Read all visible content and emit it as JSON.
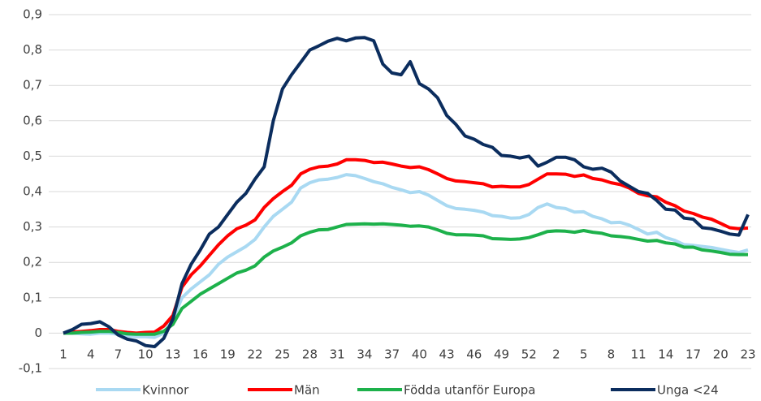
{
  "chart_data": {
    "type": "line",
    "categories": [
      "1",
      null,
      null,
      "4",
      null,
      null,
      "7",
      null,
      null,
      "10",
      null,
      null,
      "13",
      null,
      null,
      "16",
      null,
      null,
      "19",
      null,
      null,
      "22",
      null,
      null,
      "25",
      null,
      null,
      "28",
      null,
      null,
      "31",
      null,
      null,
      "34",
      null,
      null,
      "37",
      null,
      null,
      "40",
      null,
      null,
      "43",
      null,
      null,
      "46",
      null,
      null,
      "49",
      null,
      null,
      "52",
      null,
      null,
      "2",
      null,
      null,
      "5",
      null,
      null,
      "8",
      null,
      null,
      "11",
      null,
      null,
      "14",
      null,
      null,
      "17",
      null,
      null,
      "20",
      null,
      null,
      "23"
    ],
    "ylim": [
      -0.1,
      0.9
    ],
    "yticks": [
      {
        "value": -0.1,
        "label": "-0,1"
      },
      0,
      {
        "value": 0.1,
        "label": "0,1"
      },
      {
        "value": 0.2,
        "label": "0,2"
      },
      {
        "value": 0.3,
        "label": "0,3"
      },
      {
        "value": 0.4,
        "label": "0,4"
      },
      {
        "value": 0.5,
        "label": "0,5"
      },
      {
        "value": 0.6,
        "label": "0,6"
      },
      {
        "value": 0.7,
        "label": "0,7"
      },
      {
        "value": 0.8,
        "label": "0,8"
      },
      {
        "value": 0.9,
        "label": "0,9"
      }
    ],
    "grid": true,
    "legend": "bottom",
    "series": [
      {
        "name": "Kvinnor",
        "color": "#a9d9f2",
        "values": [
          0,
          0,
          -0.002,
          -0.003,
          0,
          0,
          -0.003,
          -0.007,
          -0.01,
          -0.01,
          -0.012,
          0,
          0.04,
          0.1,
          0.125,
          0.145,
          0.165,
          0.195,
          0.215,
          0.23,
          0.245,
          0.265,
          0.3,
          0.33,
          0.35,
          0.37,
          0.41,
          0.425,
          0.433,
          0.435,
          0.44,
          0.448,
          0.445,
          0.437,
          0.428,
          0.422,
          0.412,
          0.405,
          0.397,
          0.4,
          0.39,
          0.375,
          0.36,
          0.352,
          0.35,
          0.347,
          0.342,
          0.332,
          0.33,
          0.325,
          0.326,
          0.335,
          0.355,
          0.365,
          0.355,
          0.352,
          0.342,
          0.343,
          0.33,
          0.323,
          0.312,
          0.313,
          0.305,
          0.293,
          0.28,
          0.285,
          0.27,
          0.262,
          0.25,
          0.248,
          0.245,
          0.242,
          0.237,
          0.232,
          0.228,
          0.235
        ]
      },
      {
        "name": "Män",
        "color": "#ff0000",
        "values": [
          0,
          0.003,
          0.005,
          0.007,
          0.01,
          0.01,
          0.005,
          0.002,
          0,
          0.002,
          0.003,
          0.02,
          0.05,
          0.13,
          0.165,
          0.19,
          0.22,
          0.25,
          0.275,
          0.295,
          0.305,
          0.32,
          0.355,
          0.38,
          0.4,
          0.418,
          0.45,
          0.463,
          0.47,
          0.472,
          0.478,
          0.49,
          0.49,
          0.488,
          0.482,
          0.483,
          0.478,
          0.472,
          0.468,
          0.47,
          0.462,
          0.45,
          0.437,
          0.43,
          0.428,
          0.425,
          0.422,
          0.413,
          0.415,
          0.413,
          0.413,
          0.42,
          0.435,
          0.45,
          0.45,
          0.449,
          0.443,
          0.447,
          0.437,
          0.433,
          0.425,
          0.42,
          0.41,
          0.395,
          0.388,
          0.385,
          0.37,
          0.36,
          0.345,
          0.338,
          0.328,
          0.322,
          0.31,
          0.298,
          0.295,
          0.297
        ]
      },
      {
        "name": "Födda utanför Europa",
        "color": "#1db14b",
        "values": [
          0,
          0,
          0.002,
          0.003,
          0.005,
          0.005,
          0.002,
          -0.002,
          -0.003,
          -0.003,
          -0.003,
          0.005,
          0.025,
          0.07,
          0.09,
          0.11,
          0.125,
          0.14,
          0.155,
          0.17,
          0.178,
          0.19,
          0.215,
          0.232,
          0.243,
          0.255,
          0.275,
          0.285,
          0.292,
          0.293,
          0.3,
          0.307,
          0.308,
          0.309,
          0.308,
          0.309,
          0.307,
          0.305,
          0.302,
          0.303,
          0.3,
          0.292,
          0.282,
          0.278,
          0.278,
          0.277,
          0.275,
          0.267,
          0.266,
          0.265,
          0.266,
          0.27,
          0.278,
          0.287,
          0.289,
          0.288,
          0.285,
          0.29,
          0.285,
          0.282,
          0.275,
          0.273,
          0.27,
          0.265,
          0.26,
          0.262,
          0.255,
          0.252,
          0.243,
          0.243,
          0.235,
          0.232,
          0.228,
          0.223,
          0.222,
          0.222
        ]
      },
      {
        "name": "Unga <24",
        "color": "#0b2d5e",
        "values": [
          0,
          0.01,
          0.025,
          0.027,
          0.032,
          0.018,
          -0.005,
          -0.017,
          -0.022,
          -0.035,
          -0.038,
          -0.015,
          0.04,
          0.14,
          0.195,
          0.235,
          0.28,
          0.3,
          0.335,
          0.37,
          0.395,
          0.435,
          0.47,
          0.6,
          0.69,
          0.73,
          0.765,
          0.8,
          0.812,
          0.825,
          0.833,
          0.826,
          0.834,
          0.835,
          0.826,
          0.76,
          0.735,
          0.73,
          0.767,
          0.705,
          0.69,
          0.665,
          0.615,
          0.59,
          0.557,
          0.548,
          0.533,
          0.525,
          0.502,
          0.5,
          0.495,
          0.5,
          0.472,
          0.483,
          0.497,
          0.497,
          0.49,
          0.47,
          0.463,
          0.466,
          0.455,
          0.43,
          0.415,
          0.4,
          0.395,
          0.375,
          0.35,
          0.348,
          0.325,
          0.322,
          0.298,
          0.295,
          0.288,
          0.28,
          0.277,
          0.335
        ]
      }
    ]
  }
}
